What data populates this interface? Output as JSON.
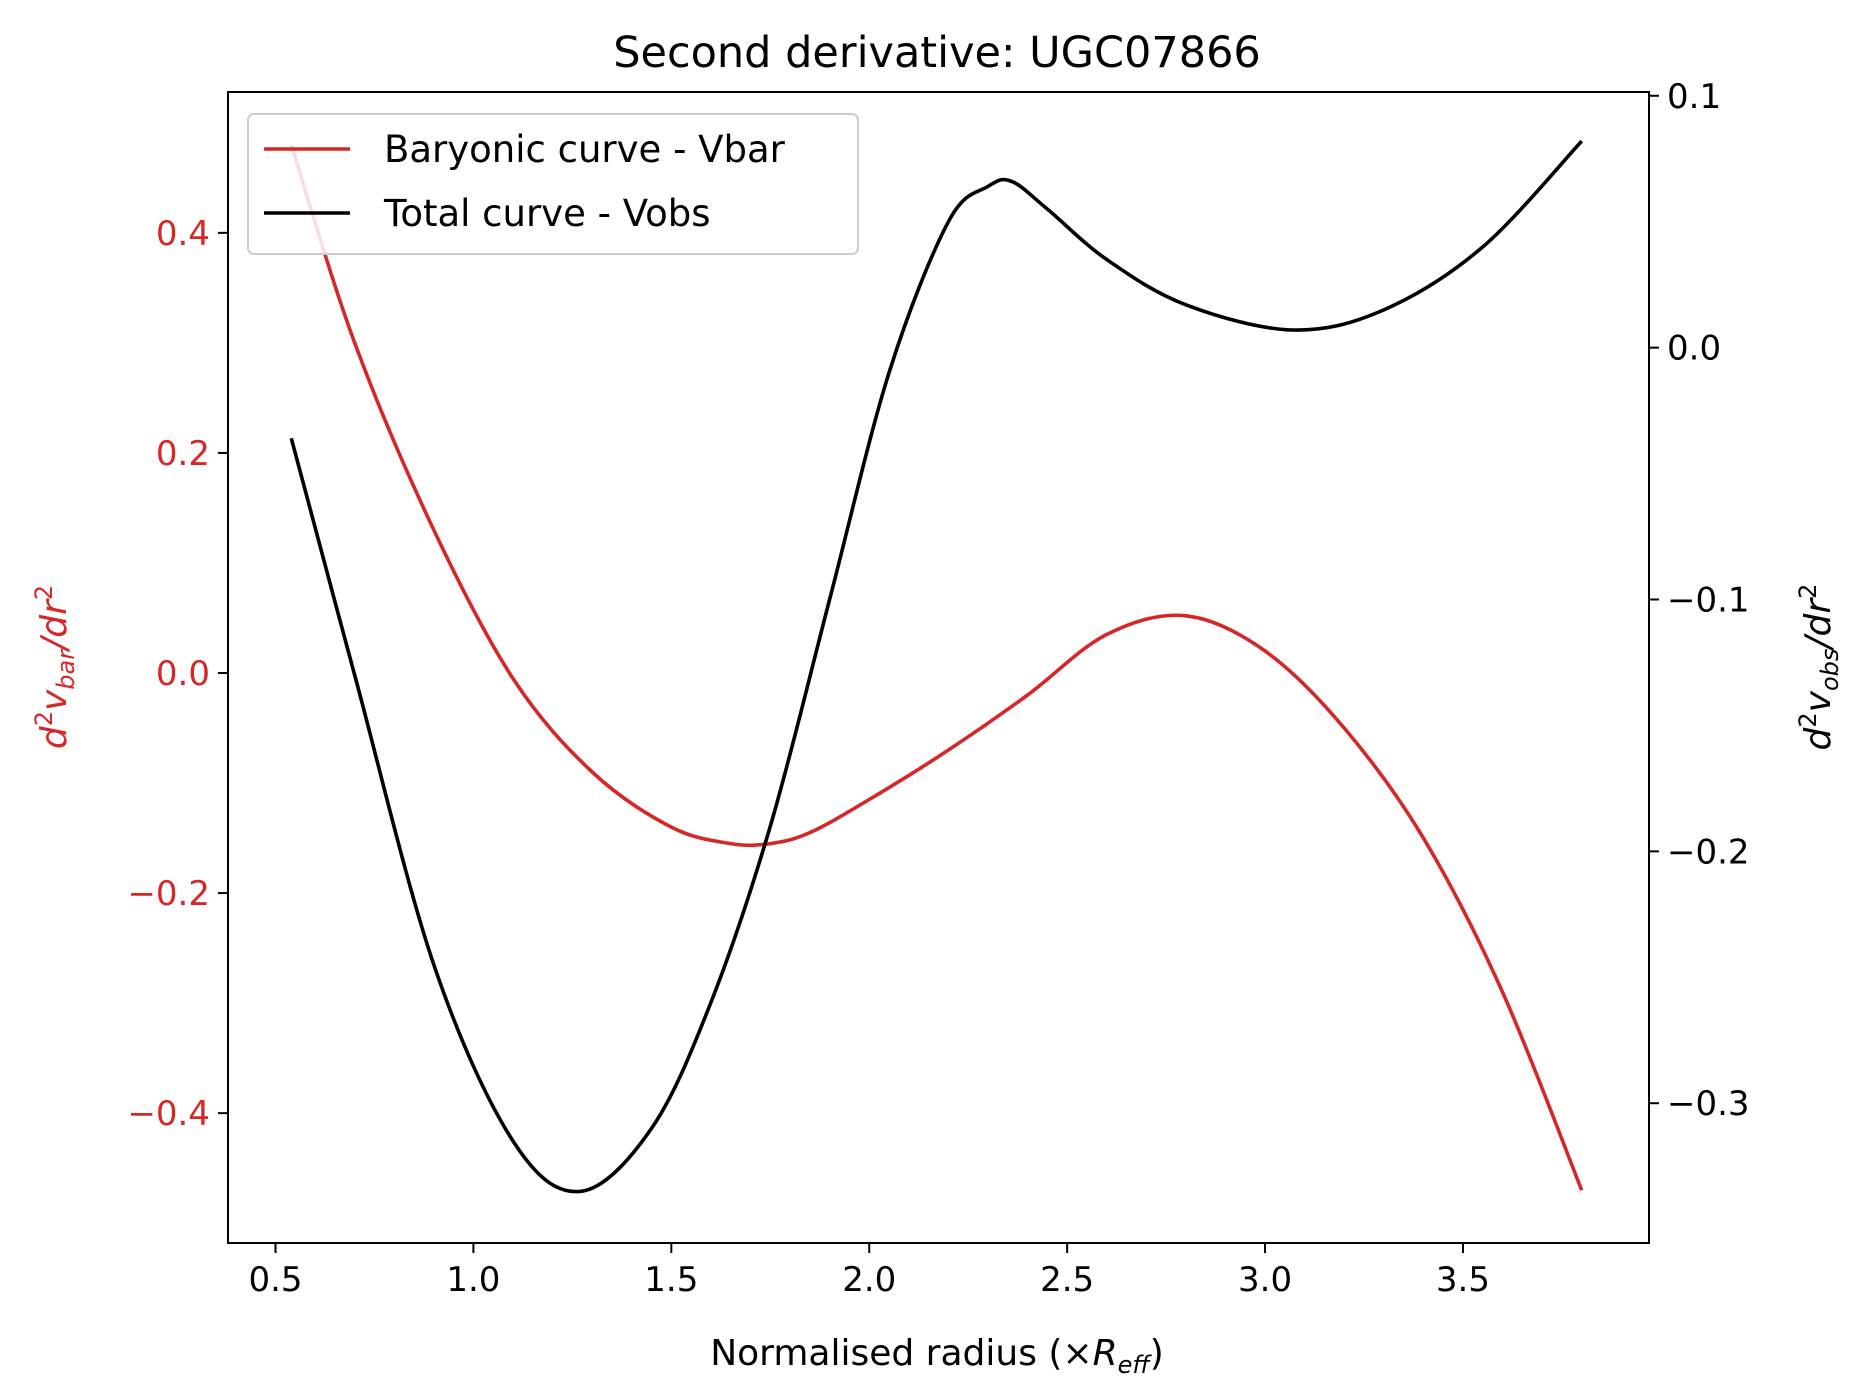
{
  "chart_data": {
    "type": "line",
    "title": "Second derivative: UGC07866",
    "xlabel": {
      "prefix": "Normalised radius (×",
      "var": "R",
      "sub": "eff",
      "suffix": ")"
    },
    "ylabel_left": {
      "d": "d",
      "sup": "2",
      "v": "v",
      "sub": "bar",
      "rest": "/dr",
      "sup2": "2"
    },
    "ylabel_right": {
      "d": "d",
      "sup": "2",
      "v": "v",
      "sub": "obs",
      "rest": "/dr",
      "sup2": "2"
    },
    "xlim": [
      0.38,
      3.97
    ],
    "ylim_left": [
      -0.518,
      0.528
    ],
    "ylim_right": [
      -0.3555,
      0.1015
    ],
    "x_ticks": [
      "0.5",
      "1.0",
      "1.5",
      "2.0",
      "2.5",
      "3.0",
      "3.5"
    ],
    "y_left_ticks": [
      "−0.4",
      "−0.2",
      "0.0",
      "0.2",
      "0.4"
    ],
    "y_right_ticks": [
      "−0.3",
      "−0.2",
      "−0.1",
      "0.0",
      "0.1"
    ],
    "colors": {
      "vbar": "#d62728",
      "vobs": "#000000",
      "left_axis": "#d62728"
    },
    "legend": {
      "position": "upper-left",
      "entries": [
        "Baryonic curve - Vbar",
        "Total curve - Vobs"
      ]
    },
    "series": [
      {
        "name": "Baryonic curve - Vbar",
        "axis": "left",
        "x": [
          0.54,
          0.7,
          0.9,
          1.1,
          1.3,
          1.5,
          1.65,
          1.75,
          1.85,
          2.0,
          2.2,
          2.4,
          2.6,
          2.8,
          3.0,
          3.2,
          3.4,
          3.6,
          3.8
        ],
        "y": [
          0.48,
          0.3,
          0.13,
          -0.005,
          -0.09,
          -0.14,
          -0.155,
          -0.155,
          -0.145,
          -0.115,
          -0.07,
          -0.02,
          0.035,
          0.052,
          0.02,
          -0.05,
          -0.15,
          -0.29,
          -0.47
        ]
      },
      {
        "name": "Total curve - Vobs",
        "axis": "right",
        "x": [
          0.54,
          0.7,
          0.9,
          1.1,
          1.27,
          1.45,
          1.6,
          1.75,
          1.9,
          2.05,
          2.2,
          2.3,
          2.36,
          2.45,
          2.6,
          2.8,
          3.07,
          3.3,
          3.55,
          3.8
        ],
        "y": [
          -0.036,
          -0.13,
          -0.245,
          -0.315,
          -0.335,
          -0.31,
          -0.26,
          -0.19,
          -0.1,
          -0.01,
          0.05,
          0.064,
          0.066,
          0.055,
          0.035,
          0.017,
          0.007,
          0.015,
          0.04,
          0.082
        ]
      }
    ]
  }
}
